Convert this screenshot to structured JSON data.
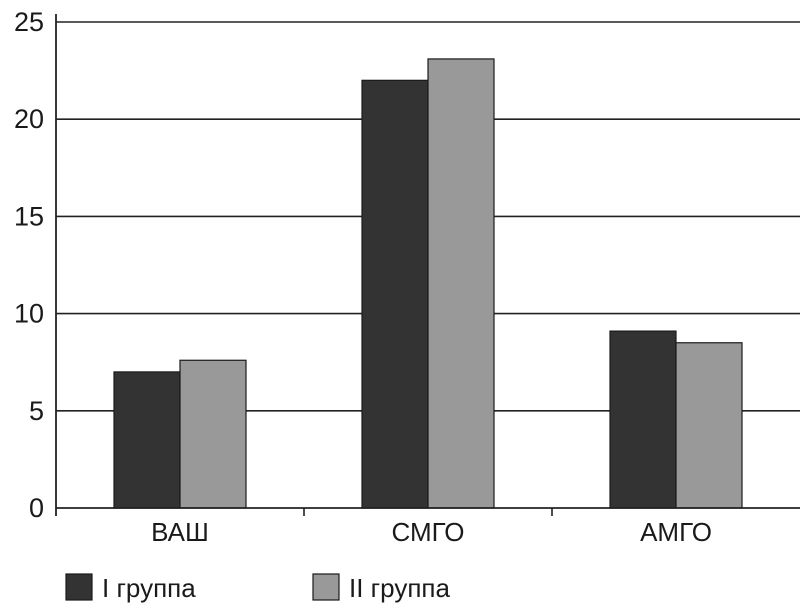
{
  "chart_data": {
    "type": "bar",
    "title": "",
    "xlabel": "",
    "ylabel": "",
    "categories": [
      "ВАШ",
      "СМГО",
      "АМГО"
    ],
    "series": [
      {
        "name": "I группа",
        "values": [
          7.0,
          22.0,
          9.1
        ],
        "color": "#333333"
      },
      {
        "name": "II группа",
        "values": [
          7.6,
          23.1,
          8.5
        ],
        "color": "#999999"
      }
    ],
    "ylim": [
      0,
      25
    ],
    "yticks": [
      "0",
      "5",
      "10",
      "15",
      "20",
      "25"
    ],
    "grid": true,
    "legend_position": "bottom-left"
  }
}
